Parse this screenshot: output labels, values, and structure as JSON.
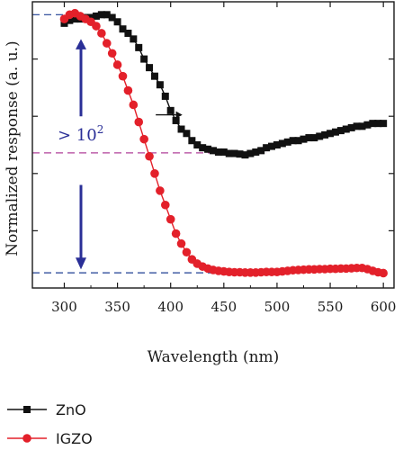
{
  "chart_data": {
    "type": "line",
    "title": "",
    "xlabel": "Wavelength (nm)",
    "ylabel": "Normalized response (a. u.)",
    "xlim": [
      270,
      610
    ],
    "ylim": [
      0,
      1
    ],
    "x_ticks": [
      300,
      350,
      400,
      450,
      500,
      550,
      600
    ],
    "y_ticks_labeled": false,
    "grid": false,
    "legend_position": "bottom-left, below the plot",
    "series": [
      {
        "name": "ZnO",
        "marker": "square",
        "color": "#111111",
        "x": [
          300,
          305,
          310,
          315,
          320,
          325,
          330,
          335,
          340,
          345,
          350,
          355,
          360,
          365,
          370,
          375,
          380,
          385,
          390,
          395,
          400,
          405,
          410,
          415,
          420,
          425,
          430,
          435,
          440,
          445,
          450,
          455,
          460,
          465,
          470,
          475,
          480,
          485,
          490,
          495,
          500,
          505,
          510,
          515,
          520,
          525,
          530,
          535,
          540,
          545,
          550,
          555,
          560,
          565,
          570,
          575,
          580,
          585,
          590,
          595,
          600
        ],
        "y": [
          0.925,
          0.935,
          0.94,
          0.94,
          0.945,
          0.945,
          0.95,
          0.955,
          0.955,
          0.945,
          0.93,
          0.905,
          0.89,
          0.87,
          0.84,
          0.8,
          0.77,
          0.74,
          0.71,
          0.67,
          0.62,
          0.585,
          0.555,
          0.54,
          0.515,
          0.5,
          0.49,
          0.485,
          0.48,
          0.475,
          0.475,
          0.47,
          0.47,
          0.468,
          0.465,
          0.47,
          0.475,
          0.48,
          0.49,
          0.495,
          0.5,
          0.505,
          0.51,
          0.515,
          0.515,
          0.52,
          0.525,
          0.525,
          0.53,
          0.535,
          0.54,
          0.545,
          0.55,
          0.555,
          0.56,
          0.565,
          0.565,
          0.57,
          0.575,
          0.575,
          0.575
        ]
      },
      {
        "name": "IGZO",
        "marker": "circle",
        "color": "#e3202a",
        "x": [
          300,
          305,
          310,
          315,
          320,
          325,
          330,
          335,
          340,
          345,
          350,
          355,
          360,
          365,
          370,
          375,
          380,
          385,
          390,
          395,
          400,
          405,
          410,
          415,
          420,
          425,
          430,
          435,
          440,
          445,
          450,
          455,
          460,
          465,
          470,
          475,
          480,
          485,
          490,
          495,
          500,
          505,
          510,
          515,
          520,
          525,
          530,
          535,
          540,
          545,
          550,
          555,
          560,
          565,
          570,
          575,
          580,
          585,
          590,
          595,
          600
        ],
        "y": [
          0.94,
          0.955,
          0.96,
          0.95,
          0.94,
          0.93,
          0.915,
          0.89,
          0.855,
          0.82,
          0.78,
          0.74,
          0.69,
          0.64,
          0.58,
          0.52,
          0.46,
          0.4,
          0.34,
          0.29,
          0.24,
          0.19,
          0.155,
          0.125,
          0.1,
          0.085,
          0.075,
          0.068,
          0.063,
          0.06,
          0.058,
          0.056,
          0.055,
          0.055,
          0.054,
          0.054,
          0.054,
          0.055,
          0.056,
          0.056,
          0.056,
          0.058,
          0.06,
          0.062,
          0.063,
          0.064,
          0.065,
          0.065,
          0.066,
          0.066,
          0.067,
          0.067,
          0.068,
          0.068,
          0.069,
          0.07,
          0.07,
          0.066,
          0.06,
          0.055,
          0.052
        ]
      }
    ],
    "annotations": {
      "ratio_label": "> 10",
      "ratio_exponent": "2"
    },
    "colors": {
      "axis": "#1a1a1a",
      "ref_line_blue": "#1f3f94",
      "ref_line_magenta": "#b0409a",
      "arrow_blue": "#2a2f97",
      "annotation_text": "#2a2f97"
    }
  }
}
